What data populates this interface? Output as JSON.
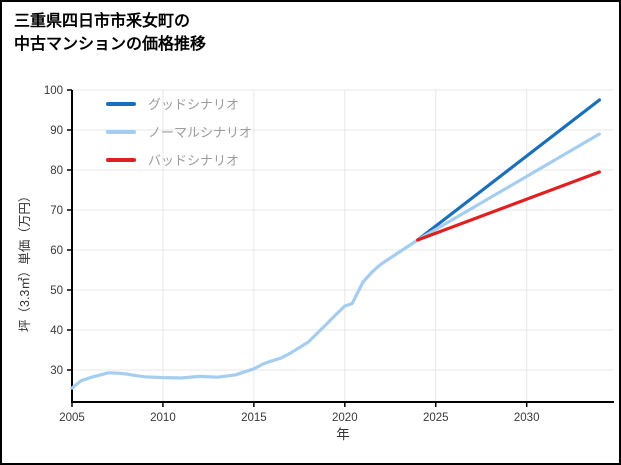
{
  "title": {
    "line1": "三重県四日市市釆女町の",
    "line2": "中古マンションの価格推移"
  },
  "axes": {
    "xlabel": "年",
    "ylabel": "坪（3.3㎡）単価（万円）"
  },
  "chart_data": {
    "type": "line",
    "title": "三重県四日市市釆女町の中古マンションの価格推移",
    "xlabel": "年",
    "ylabel": "坪（3.3㎡）単価（万円）",
    "xlim": [
      2005,
      2034.8
    ],
    "ylim": [
      22,
      100
    ],
    "xticks": [
      2005,
      2010,
      2015,
      2020,
      2025,
      2030
    ],
    "yticks": [
      30,
      40,
      50,
      60,
      70,
      80,
      90,
      100
    ],
    "grid": true,
    "legend_position": "top-left",
    "axis_color": "#000000",
    "grid_color": "#e7e7e7",
    "series": [
      {
        "name": "グッドシナリオ",
        "color": "#1b6fba",
        "points": [
          [
            2024,
            62.5
          ],
          [
            2034,
            97.5
          ]
        ]
      },
      {
        "name": "ノーマルシナリオ",
        "color": "#a5cdf0",
        "points": [
          [
            2005,
            25.5
          ],
          [
            2005.5,
            27.3
          ],
          [
            2006,
            28.1
          ],
          [
            2006.5,
            28.7
          ],
          [
            2007,
            29.3
          ],
          [
            2007.5,
            29.2
          ],
          [
            2008,
            29.0
          ],
          [
            2008.5,
            28.6
          ],
          [
            2009,
            28.3
          ],
          [
            2010,
            28.1
          ],
          [
            2011,
            28.0
          ],
          [
            2012,
            28.4
          ],
          [
            2013,
            28.2
          ],
          [
            2014,
            28.8
          ],
          [
            2015,
            30.3
          ],
          [
            2015.5,
            31.5
          ],
          [
            2016,
            32.3
          ],
          [
            2016.5,
            33.0
          ],
          [
            2017,
            34.2
          ],
          [
            2018,
            37.0
          ],
          [
            2019,
            41.5
          ],
          [
            2019.5,
            43.8
          ],
          [
            2020,
            46.0
          ],
          [
            2020.4,
            46.6
          ],
          [
            2021,
            52.0
          ],
          [
            2021.5,
            54.5
          ],
          [
            2022,
            56.5
          ],
          [
            2023,
            59.5
          ],
          [
            2024,
            62.5
          ],
          [
            2034,
            89.0
          ]
        ]
      },
      {
        "name": "バッドシナリオ",
        "color": "#e02020",
        "points": [
          [
            2024,
            62.5
          ],
          [
            2034,
            79.5
          ]
        ]
      }
    ]
  }
}
